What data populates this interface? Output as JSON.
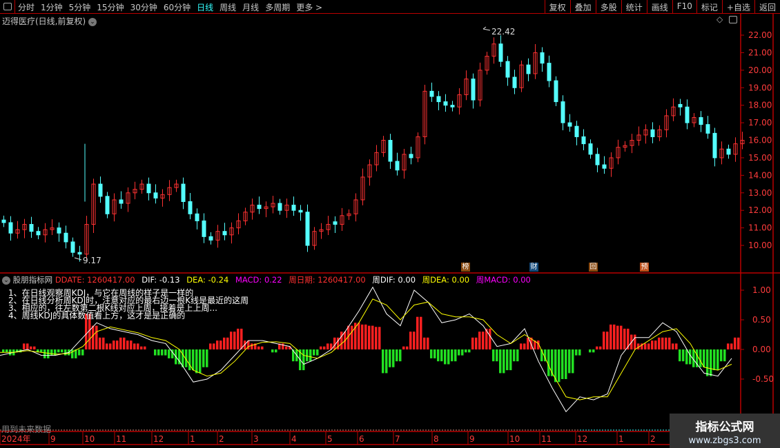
{
  "toolbar": {
    "periods": [
      "分时",
      "1分钟",
      "5分钟",
      "15分钟",
      "30分钟",
      "60分钟",
      "日线",
      "周线",
      "月线",
      "多周期",
      "更多 >"
    ],
    "active": "日线",
    "buttons": [
      "复权",
      "叠加",
      "多股",
      "统计",
      "画线",
      "F10",
      "标记",
      "+自选",
      "返回"
    ]
  },
  "stock_title": "迈得医疗(日线,前复权)",
  "markers": [
    {
      "label": "榜",
      "color": "#8a4a10"
    },
    {
      "label": "财",
      "color": "#134a7a"
    },
    {
      "label": "回",
      "color": "#8a4a10"
    },
    {
      "label": "预",
      "color": "#c0501a"
    }
  ],
  "indicator": {
    "name": "股朋指标网",
    "fields": [
      {
        "label": "DDATE: 1260417.00",
        "color": "#ff3030"
      },
      {
        "label": "DIF: -0.13",
        "color": "#ffffff"
      },
      {
        "label": "DEA: -0.24",
        "color": "#ffff00"
      },
      {
        "label": "MACD: 0.22",
        "color": "#ff00ff"
      },
      {
        "label": "周日期: 1260417.00",
        "color": "#ff3030"
      },
      {
        "label": "周DIF: 0.00",
        "color": "#ffffff"
      },
      {
        "label": "周DEA: 0.00",
        "color": "#ffff00"
      },
      {
        "label": "周MACD: 0.00",
        "color": "#ff00ff"
      }
    ],
    "notes": [
      "1、在日线观察周KDJ，与它在周线的样子是一样的",
      "2、在日线分析周KDJ时，注意对应的最右边一根K线是最近的这周",
      "3、相应的，往左数第二根K线对应上周，接着是上上周...",
      "4、周线KDJ的具体数值看上方，这才是是正确的"
    ],
    "future_label": "用到未来数据"
  },
  "watermark": {
    "line1": "指标公式网",
    "line2": "www.zbgs3.com"
  },
  "chart_data": [
    {
      "type": "candlestick",
      "price_ticks": [
        "22.00",
        "21.00",
        "20.00",
        "19.00",
        "18.00",
        "17.00",
        "16.00",
        "15.00",
        "14.00",
        "13.00",
        "12.00",
        "11.00",
        "10.00"
      ],
      "ylim": [
        9,
        22.6
      ],
      "high_label": "22.42",
      "low_label": "9.17",
      "up_color": "#ff3232",
      "down_color": "#54ffff",
      "closes": [
        11.3,
        10.7,
        10.9,
        11.2,
        10.8,
        10.6,
        10.9,
        11.0,
        10.7,
        10.2,
        9.6,
        9.5,
        11.2,
        13.5,
        12.8,
        11.8,
        12.6,
        12.4,
        13.0,
        13.2,
        13.5,
        13.0,
        12.7,
        12.9,
        13.3,
        13.5,
        12.5,
        11.8,
        11.4,
        10.5,
        10.3,
        10.8,
        10.6,
        11.0,
        11.4,
        11.9,
        12.3,
        12.1,
        12.2,
        12.4,
        12.0,
        12.3,
        12.0,
        11.9,
        10.0,
        10.8,
        10.9,
        11.2,
        11.2,
        11.7,
        11.8,
        12.6,
        13.9,
        14.6,
        15.3,
        16.0,
        14.8,
        14.3,
        15.2,
        15.0,
        16.2,
        18.8,
        18.5,
        18.2,
        18.0,
        17.9,
        18.6,
        19.5,
        18.3,
        20.0,
        20.8,
        21.5,
        20.5,
        19.6,
        19.0,
        20.3,
        19.8,
        21.0,
        20.4,
        19.4,
        18.2,
        17.0,
        16.8,
        16.2,
        15.8,
        15.2,
        14.6,
        14.4,
        15.0,
        15.6,
        15.7,
        16.0,
        16.3,
        16.6,
        16.2,
        16.6,
        17.4,
        17.9,
        17.9,
        17.0,
        17.3,
        16.9,
        16.4,
        15.0,
        15.5,
        15.2,
        15.8,
        16.0
      ]
    },
    {
      "type": "bar+line",
      "ticks": [
        "1.00",
        "0.50",
        "0.00",
        "-0.50"
      ],
      "ylim": [
        -1.1,
        1.2
      ],
      "histogram": [
        -0.05,
        -0.1,
        -0.05,
        0.1,
        0.05,
        -0.05,
        -0.15,
        -0.1,
        -0.05,
        -0.1,
        -0.15,
        -0.1,
        0.6,
        0.4,
        0.2,
        0.1,
        0.15,
        0.2,
        0.15,
        0.1,
        0.05,
        0,
        -0.1,
        -0.1,
        -0.15,
        -0.25,
        -0.3,
        -0.35,
        -0.4,
        -0.3,
        0.1,
        0.15,
        0.2,
        0.3,
        0.35,
        0.15,
        0.1,
        0.05,
        0,
        -0.05,
        0.1,
        0.05,
        -0.2,
        -0.35,
        -0.2,
        -0.1,
        0.05,
        0.1,
        0.2,
        0.3,
        0.4,
        0.45,
        0.42,
        0.4,
        0.38,
        -0.4,
        -0.3,
        -0.2,
        0.05,
        0.3,
        0.55,
        0.2,
        -0.15,
        -0.2,
        -0.25,
        -0.2,
        -0.1,
        -0.05,
        0.2,
        0.3,
        0.35,
        -0.2,
        -0.4,
        -0.35,
        -0.2,
        0.1,
        0.2,
        0.15,
        -0.2,
        -0.45,
        -0.55,
        -0.5,
        -0.4,
        -0.1,
        0,
        -0.05,
        0.05,
        0.3,
        0.42,
        0.4,
        0.35,
        0.25,
        0.1,
        0.1,
        0.15,
        0.2,
        0.2,
        0.1,
        -0.2,
        -0.25,
        -0.3,
        -0.3,
        -0.45,
        -0.35,
        -0.2,
        0.1,
        0.2
      ],
      "white_line": [
        -0.1,
        -0.05,
        0,
        -0.1,
        -0.1,
        -0.05,
        0.2,
        0.45,
        0.35,
        0.3,
        0.25,
        0.15,
        0.1,
        -0.2,
        -0.55,
        -0.5,
        -0.35,
        -0.1,
        0.15,
        0.15,
        0.1,
        0.05,
        -0.25,
        -0.15,
        0,
        0.3,
        0.65,
        1.05,
        0.6,
        0.4,
        1.0,
        0.8,
        0.45,
        0.5,
        0.6,
        0.4,
        0.05,
        0.1,
        0.35,
        -0.2,
        -0.65,
        -1.05,
        -0.8,
        -0.85,
        -0.75,
        -0.1,
        0.2,
        0.2,
        0.45,
        0.3,
        -0.1,
        -0.4,
        -0.45,
        -0.15
      ],
      "yellow_line": [
        -0.05,
        -0.05,
        -0.02,
        -0.05,
        -0.08,
        -0.07,
        0.05,
        0.3,
        0.38,
        0.33,
        0.28,
        0.2,
        0.15,
        0,
        -0.35,
        -0.45,
        -0.4,
        -0.2,
        0.05,
        0.12,
        0.13,
        0.1,
        -0.1,
        -0.15,
        -0.05,
        0.15,
        0.45,
        0.85,
        0.75,
        0.5,
        0.75,
        0.8,
        0.6,
        0.55,
        0.55,
        0.5,
        0.25,
        0.1,
        0.25,
        0.1,
        -0.4,
        -0.8,
        -0.85,
        -0.8,
        -0.8,
        -0.4,
        0,
        0.15,
        0.3,
        0.35,
        0.1,
        -0.3,
        -0.35,
        -0.25
      ]
    },
    {
      "type": "date_axis",
      "labels": [
        "2024年",
        "9",
        "10",
        "11",
        "12",
        "1",
        "2",
        "3",
        "4",
        "5",
        "6",
        "7",
        "8",
        "9",
        "10",
        "11",
        "12",
        "1",
        "2"
      ]
    }
  ]
}
